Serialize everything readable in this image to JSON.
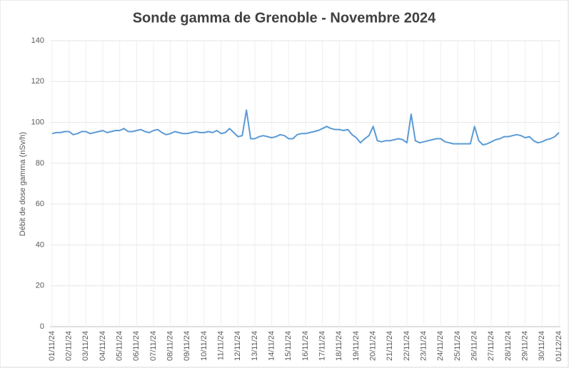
{
  "chart_data": {
    "type": "line",
    "title": "Sonde gamma de Grenoble - Novembre 2024",
    "y_label": "Débit de dose gamma (nSv/h)",
    "categories": [
      "01/11/24",
      null,
      null,
      null,
      "02/11/24",
      null,
      null,
      null,
      "03/11/24",
      null,
      null,
      null,
      "04/11/24",
      null,
      null,
      null,
      "05/11/24",
      null,
      null,
      null,
      "06/11/24",
      null,
      null,
      null,
      "07/11/24",
      null,
      null,
      null,
      "08/11/24",
      null,
      null,
      null,
      "09/11/24",
      null,
      null,
      null,
      "10/11/24",
      null,
      null,
      null,
      "11/11/24",
      null,
      null,
      null,
      "12/11/24",
      null,
      null,
      null,
      "13/11/24",
      null,
      null,
      null,
      "14/11/24",
      null,
      null,
      null,
      "15/11/24",
      null,
      null,
      null,
      "16/11/24",
      null,
      null,
      null,
      "17/11/24",
      null,
      null,
      null,
      "18/11/24",
      null,
      null,
      null,
      "19/11/24",
      null,
      null,
      null,
      "20/11/24",
      null,
      null,
      null,
      "21/11/24",
      null,
      null,
      null,
      "22/11/24",
      null,
      null,
      null,
      "23/11/24",
      null,
      null,
      null,
      "24/11/24",
      null,
      null,
      null,
      "25/11/24",
      null,
      null,
      null,
      "26/11/24",
      null,
      null,
      null,
      "27/11/24",
      null,
      null,
      null,
      "28/11/24",
      null,
      null,
      null,
      "29/11/24",
      null,
      null,
      null,
      "30/11/24",
      null,
      null,
      null,
      "01/12/24"
    ],
    "series": [
      {
        "name": "Débit de dose gamma",
        "color": "#5b9bd5",
        "values": [
          94.5,
          95,
          95,
          95.5,
          95.5,
          94,
          94.5,
          95.5,
          95.5,
          94.5,
          95,
          95.5,
          96,
          95,
          95.5,
          96,
          96,
          97,
          95.5,
          95.5,
          96,
          96.5,
          95.5,
          95,
          96,
          96.5,
          95,
          94,
          94.5,
          95.5,
          95,
          94.5,
          94.5,
          95,
          95.5,
          95,
          95,
          95.5,
          95,
          96,
          94.5,
          95,
          97,
          95,
          93,
          93.5,
          106,
          92,
          92,
          93,
          93.5,
          93,
          92.5,
          93,
          94,
          93.5,
          92,
          92,
          94,
          94.5,
          94.5,
          95,
          95.5,
          96,
          97,
          98,
          97,
          96.5,
          96.5,
          96,
          96.5,
          94,
          92.5,
          90,
          92,
          93.5,
          98,
          91,
          90.5,
          91,
          91,
          91.5,
          92,
          91.5,
          90,
          104,
          91,
          90,
          90.5,
          91,
          91.5,
          92,
          92,
          90.5,
          90,
          89.5,
          89.5,
          89.5,
          89.5,
          89.5,
          98,
          91,
          89,
          89.5,
          90.5,
          91.5,
          92,
          93,
          93,
          93.5,
          94,
          93.5,
          92.5,
          93,
          91,
          90,
          90.5,
          91.5,
          92,
          93,
          95
        ]
      }
    ],
    "ylim": [
      0,
      140
    ],
    "yticks": [
      0,
      20,
      40,
      60,
      80,
      100,
      120,
      140
    ],
    "grid": true
  }
}
